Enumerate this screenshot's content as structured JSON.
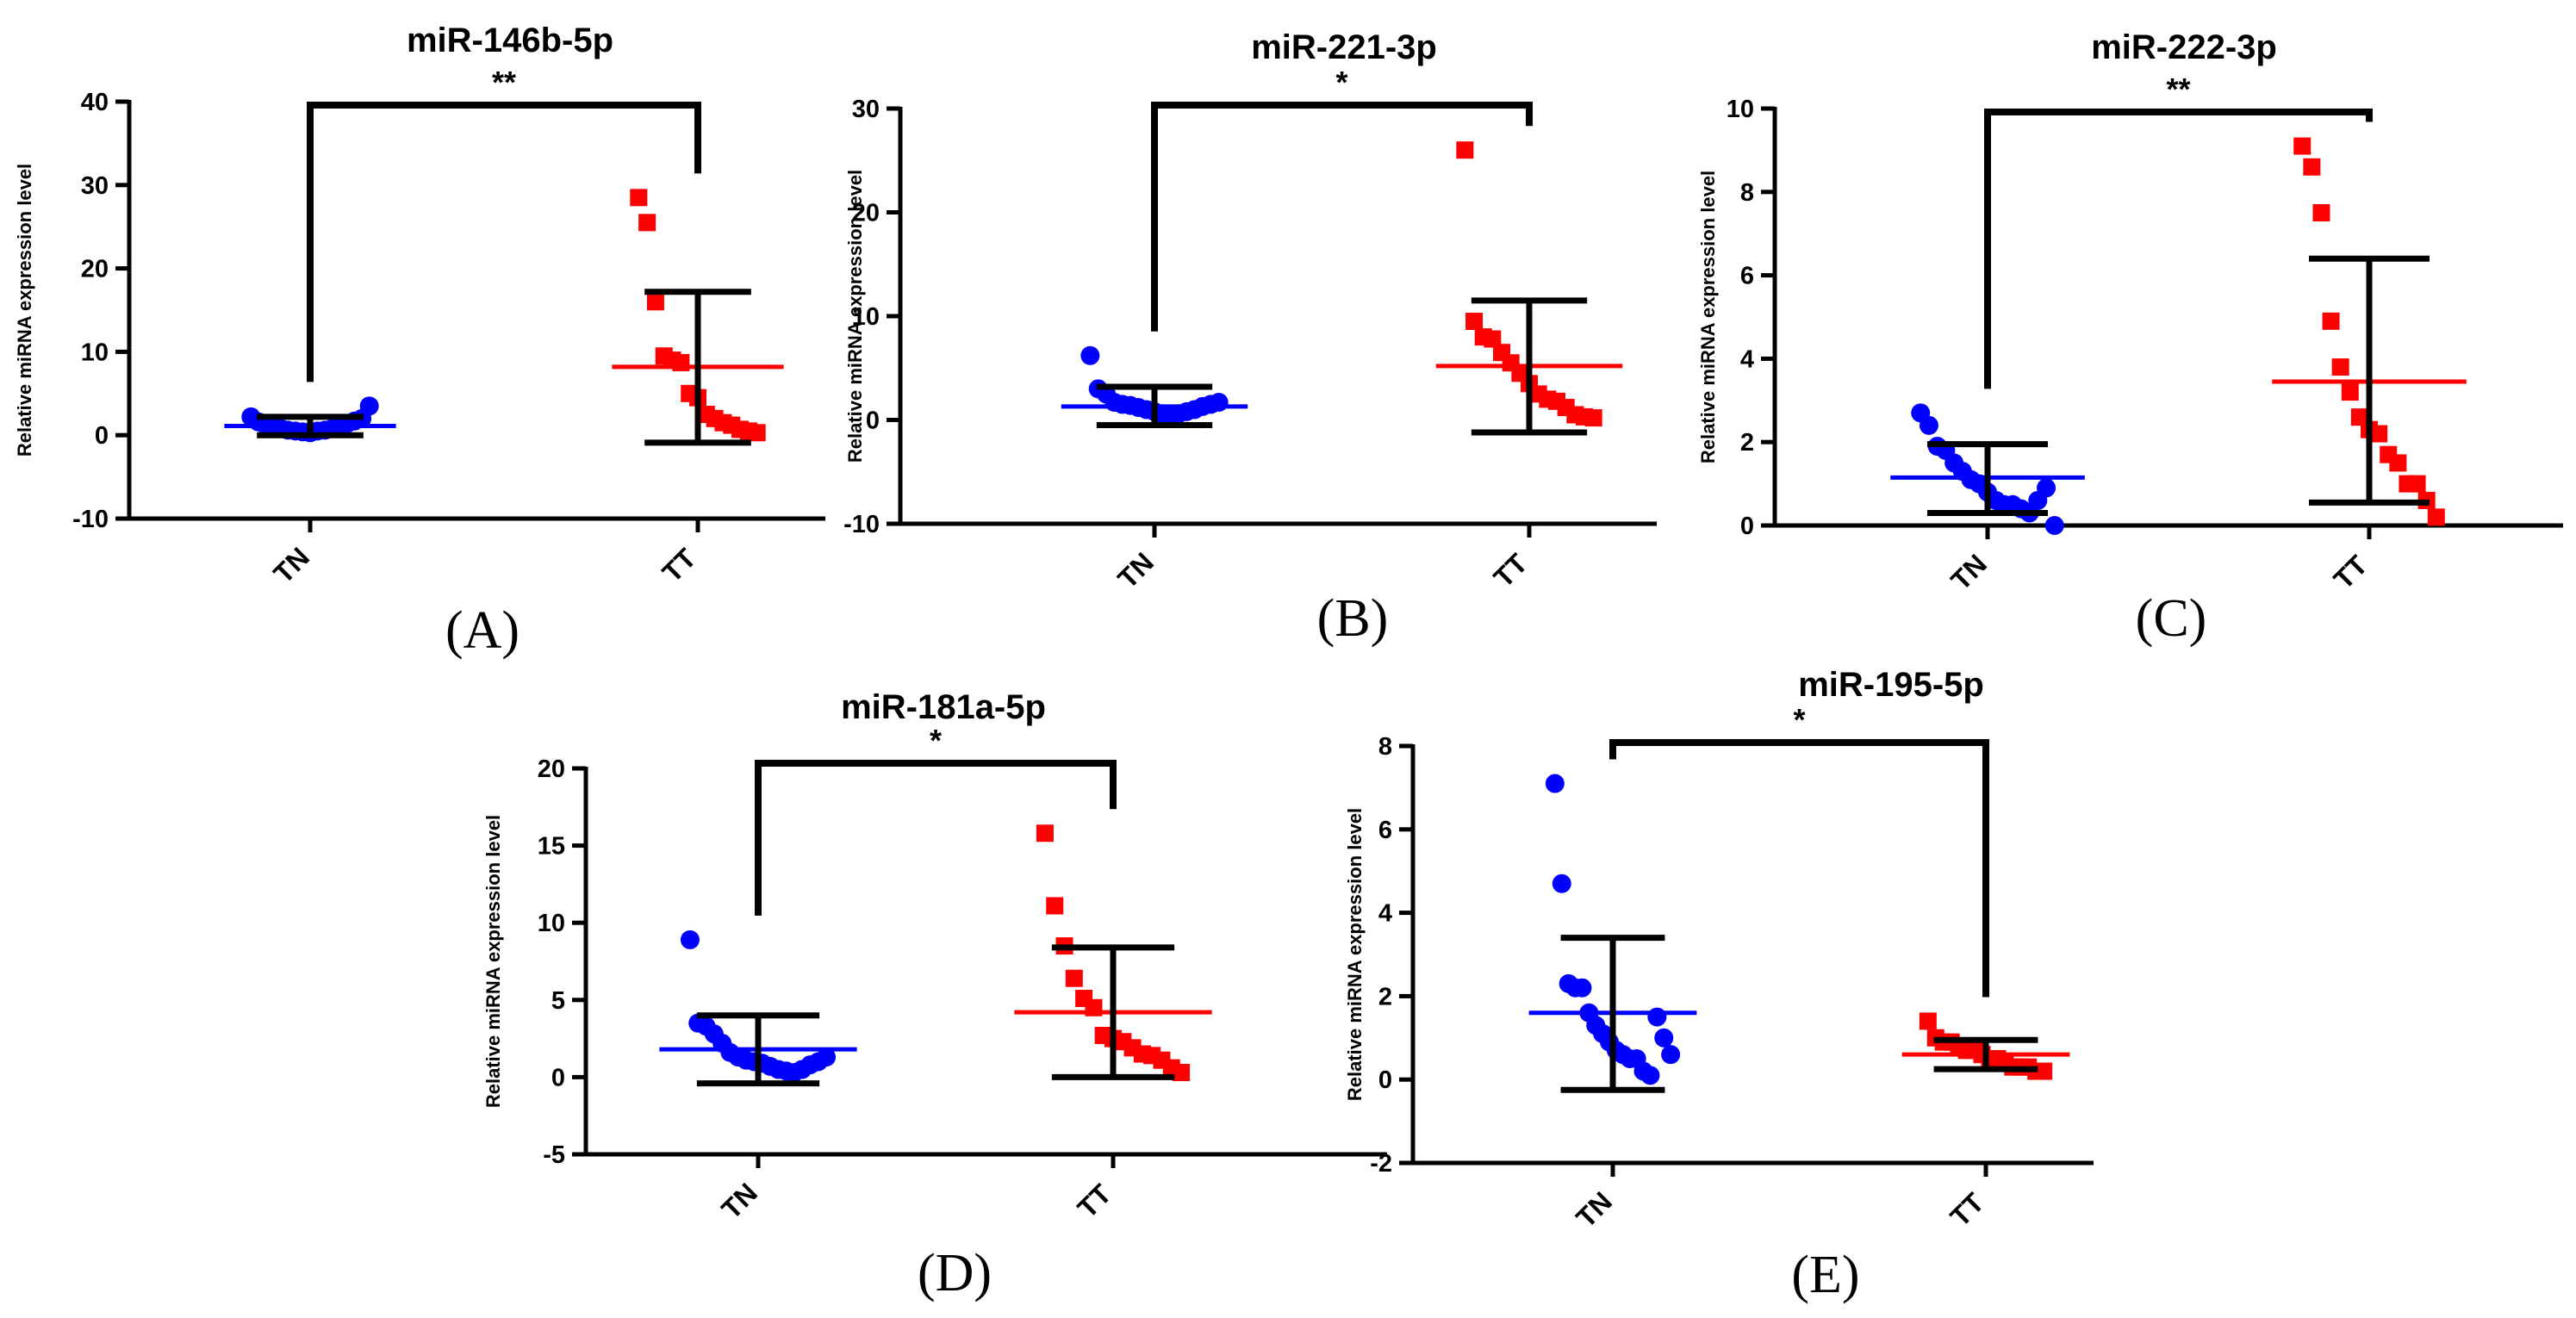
{
  "figure": {
    "colors": {
      "TN": "#0000ff",
      "TT": "#ff0000",
      "axis": "#000000"
    }
  },
  "chart_data": [
    {
      "type": "scatter",
      "panel": "(A)",
      "title": "miR-146b-5p",
      "ylabel": "Relative miRNA expression level",
      "categories": [
        "TN",
        "TT"
      ],
      "ylim": [
        -10,
        40
      ],
      "yticks": [
        -10,
        0,
        10,
        20,
        30,
        40
      ],
      "significance": "**",
      "series": [
        {
          "name": "TN",
          "mean": 1.1,
          "sd_upper": 2.2,
          "sd_lower": 0.0,
          "values": [
            2.2,
            1.6,
            1.2,
            1.0,
            0.8,
            0.6,
            0.5,
            0.4,
            0.3,
            0.5,
            0.6,
            0.8,
            1.0,
            1.4,
            1.7,
            2.0,
            3.5
          ]
        },
        {
          "name": "TT",
          "mean": 8.2,
          "sd_upper": 17.2,
          "sd_lower": -0.9,
          "values": [
            28.5,
            25.5,
            16.0,
            9.5,
            9.0,
            8.7,
            5.0,
            4.5,
            2.5,
            2.0,
            1.5,
            1.2,
            0.7,
            0.5,
            0.3
          ]
        }
      ]
    },
    {
      "type": "scatter",
      "panel": "(B)",
      "title": "miR-221-3p",
      "ylabel": "Relative miRNA expression level",
      "categories": [
        "TN",
        "TT"
      ],
      "ylim": [
        -10,
        30
      ],
      "yticks": [
        -10,
        0,
        10,
        20,
        30
      ],
      "significance": "*",
      "series": [
        {
          "name": "TN",
          "mean": 1.3,
          "sd_upper": 3.2,
          "sd_lower": -0.5,
          "values": [
            6.2,
            3.0,
            2.5,
            1.7,
            1.5,
            1.4,
            1.2,
            1.0,
            0.8,
            0.6,
            0.5,
            0.6,
            0.8,
            1.0,
            1.3,
            1.5,
            1.7
          ]
        },
        {
          "name": "TT",
          "mean": 5.2,
          "sd_upper": 11.5,
          "sd_lower": -1.2,
          "values": [
            26.0,
            9.5,
            8.0,
            7.8,
            6.5,
            5.5,
            4.5,
            3.5,
            2.5,
            2.0,
            1.8,
            1.2,
            0.5,
            0.3,
            0.2
          ]
        }
      ]
    },
    {
      "type": "scatter",
      "panel": "(C)",
      "title": "miR-222-3p",
      "ylabel": "Relative miRNA expression level",
      "categories": [
        "TN",
        "TT"
      ],
      "ylim": [
        0,
        10
      ],
      "yticks": [
        0,
        2,
        4,
        6,
        8,
        10
      ],
      "significance": "**",
      "series": [
        {
          "name": "TN",
          "mean": 1.15,
          "sd_upper": 1.95,
          "sd_lower": 0.3,
          "values": [
            2.7,
            2.4,
            1.9,
            1.8,
            1.5,
            1.3,
            1.1,
            1.0,
            0.8,
            0.6,
            0.5,
            0.5,
            0.4,
            0.3,
            0.6,
            0.9,
            0.0
          ]
        },
        {
          "name": "TT",
          "mean": 3.45,
          "sd_upper": 6.4,
          "sd_lower": 0.55,
          "values": [
            9.1,
            8.6,
            7.5,
            4.9,
            3.8,
            3.2,
            2.6,
            2.3,
            2.2,
            1.7,
            1.5,
            1.0,
            1.0,
            0.6,
            0.2
          ]
        }
      ]
    },
    {
      "type": "scatter",
      "panel": "(D)",
      "title": "miR-181a-5p",
      "ylabel": "Relative miRNA expression level",
      "categories": [
        "TN",
        "TT"
      ],
      "ylim": [
        -5,
        20
      ],
      "yticks": [
        -5,
        0,
        5,
        10,
        15,
        20
      ],
      "significance": "*",
      "series": [
        {
          "name": "TN",
          "mean": 1.8,
          "sd_upper": 4.0,
          "sd_lower": -0.4,
          "values": [
            8.9,
            3.5,
            3.3,
            2.8,
            2.2,
            1.6,
            1.3,
            1.1,
            1.0,
            0.9,
            0.7,
            0.5,
            0.4,
            0.3,
            0.5,
            0.8,
            1.0,
            1.3
          ]
        },
        {
          "name": "TT",
          "mean": 4.2,
          "sd_upper": 8.4,
          "sd_lower": 0.0,
          "values": [
            15.8,
            11.1,
            8.5,
            6.4,
            5.1,
            4.5,
            2.7,
            2.5,
            2.3,
            1.9,
            1.5,
            1.4,
            1.1,
            0.6,
            0.3
          ]
        }
      ]
    },
    {
      "type": "scatter",
      "panel": "(E)",
      "title": "miR-195-5p",
      "ylabel": "Relative miRNA expression level",
      "categories": [
        "TN",
        "TT"
      ],
      "ylim": [
        -2,
        8
      ],
      "yticks": [
        -2,
        0,
        2,
        4,
        6,
        8
      ],
      "significance": "*",
      "series": [
        {
          "name": "TN",
          "mean": 1.6,
          "sd_upper": 3.4,
          "sd_lower": -0.25,
          "values": [
            7.1,
            4.7,
            2.3,
            2.2,
            2.2,
            1.6,
            1.3,
            1.1,
            0.9,
            0.7,
            0.6,
            0.5,
            0.5,
            0.2,
            0.1,
            1.5,
            1.0,
            0.6
          ]
        },
        {
          "name": "TT",
          "mean": 0.6,
          "sd_upper": 0.95,
          "sd_lower": 0.25,
          "values": [
            1.4,
            1.0,
            0.9,
            0.9,
            0.8,
            0.7,
            0.7,
            0.6,
            0.5,
            0.5,
            0.4,
            0.3,
            0.3,
            0.3,
            0.2,
            0.2
          ]
        }
      ]
    }
  ]
}
